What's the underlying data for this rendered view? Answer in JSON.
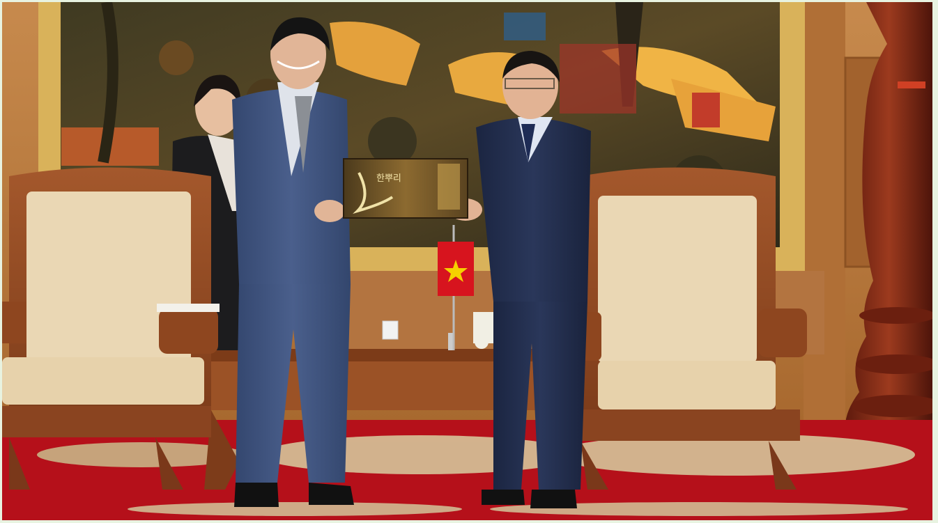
{
  "image": {
    "kind": "photograph",
    "description_alt": "",
    "gift_box_text": "한뿌리",
    "colors": {
      "border": "#e8f3e1",
      "wall_wood": "#b9793f",
      "carpet_red": "#b5101a",
      "flag_red": "#d7141e",
      "flag_star": "#f5d000",
      "suit_blue": "#3b4f7a",
      "suit_navy": "#22304f",
      "upholstery": "#ead7b4"
    }
  }
}
